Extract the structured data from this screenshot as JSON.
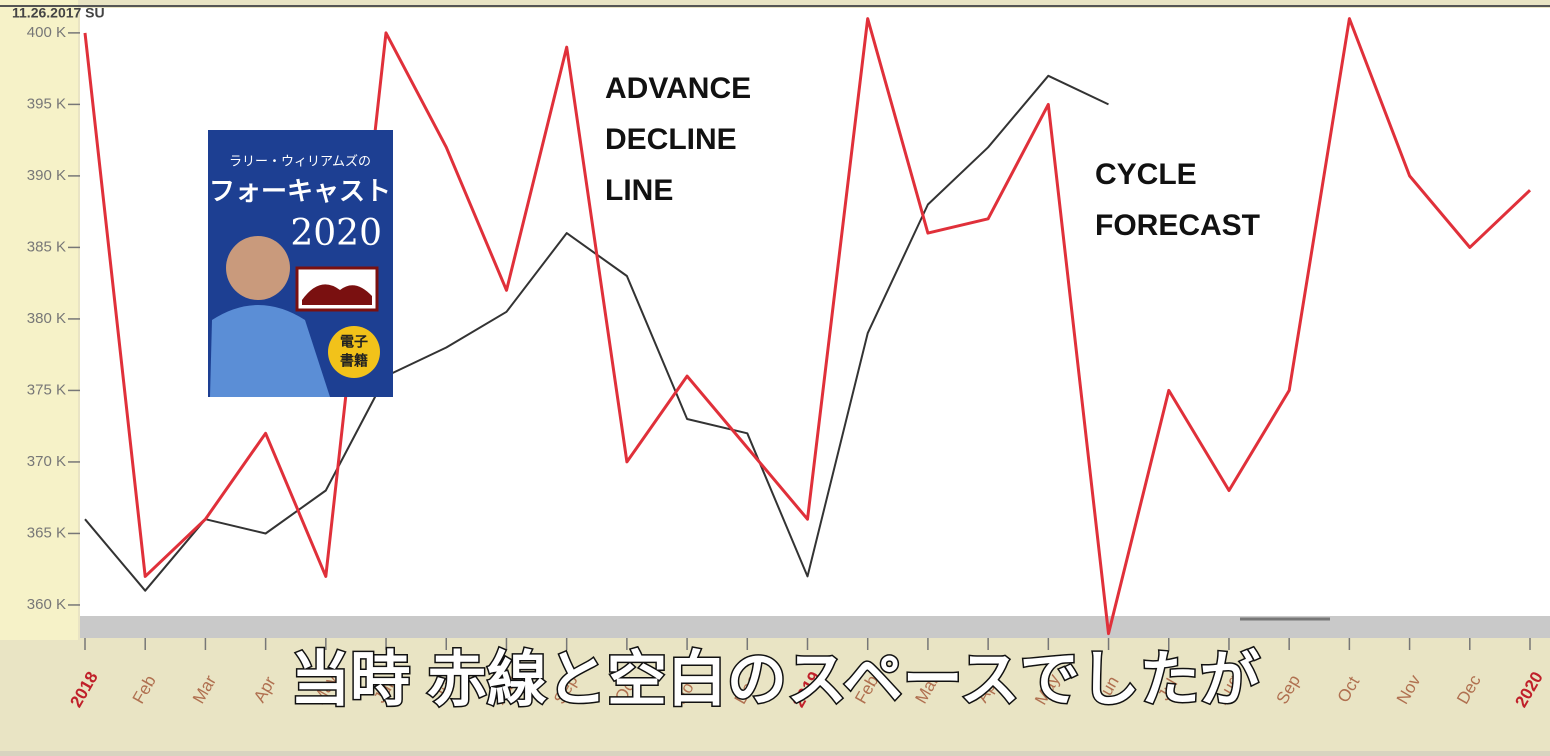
{
  "chart_data": {
    "type": "line",
    "header": "11.26.2017 SU",
    "categories": [
      "2018",
      "Feb",
      "Mar",
      "Apr",
      "May",
      "Jun",
      "Jul",
      "Aug",
      "Sep",
      "Oct",
      "Nov",
      "Dec",
      "2019",
      "Feb",
      "Mar",
      "Apr",
      "May",
      "Jun",
      "Jul",
      "Aug",
      "Sep",
      "Oct",
      "Nov",
      "Dec",
      "2020"
    ],
    "series": [
      {
        "color": "#333333",
        "values": [
          366000,
          361000,
          366000,
          365000,
          368000,
          376000,
          378000,
          380500,
          386000,
          383000,
          373000,
          372000,
          362000,
          379000,
          388000,
          392000,
          397000,
          395000,
          null,
          null,
          null,
          null,
          null,
          null,
          null
        ]
      },
      {
        "color": "#e0303a",
        "values": [
          400000,
          362000,
          366000,
          372000,
          362000,
          400000,
          392000,
          382000,
          399000,
          370000,
          376000,
          371000,
          366000,
          401000,
          386000,
          387000,
          395000,
          358000,
          375000,
          368000,
          375000,
          401000,
          390000,
          385000,
          389000
        ]
      }
    ],
    "ylim": [
      357900,
      401600
    ],
    "yticks": [
      {
        "value": 360000,
        "label": "360 K"
      },
      {
        "value": 365000,
        "label": "365 K"
      },
      {
        "value": 370000,
        "label": "370 K"
      },
      {
        "value": 375000,
        "label": "375 K"
      },
      {
        "value": 380000,
        "label": "380 K"
      },
      {
        "value": 385000,
        "label": "385 K"
      },
      {
        "value": 390000,
        "label": "390 K"
      },
      {
        "value": 395000,
        "label": "395 K"
      },
      {
        "value": 400000,
        "label": "400 K"
      }
    ],
    "annotations": [
      [
        "ADVANCE",
        "DECLINE",
        "LINE"
      ],
      [
        "CYCLE",
        "FORECAST"
      ]
    ]
  },
  "book": {
    "subtitle": "ラリー・ウィリアムズの",
    "title": "フォーキャスト",
    "year": "2020",
    "badge": [
      "電子",
      "書籍"
    ]
  },
  "caption": "当時 赤線と空白のスペースでしたが"
}
